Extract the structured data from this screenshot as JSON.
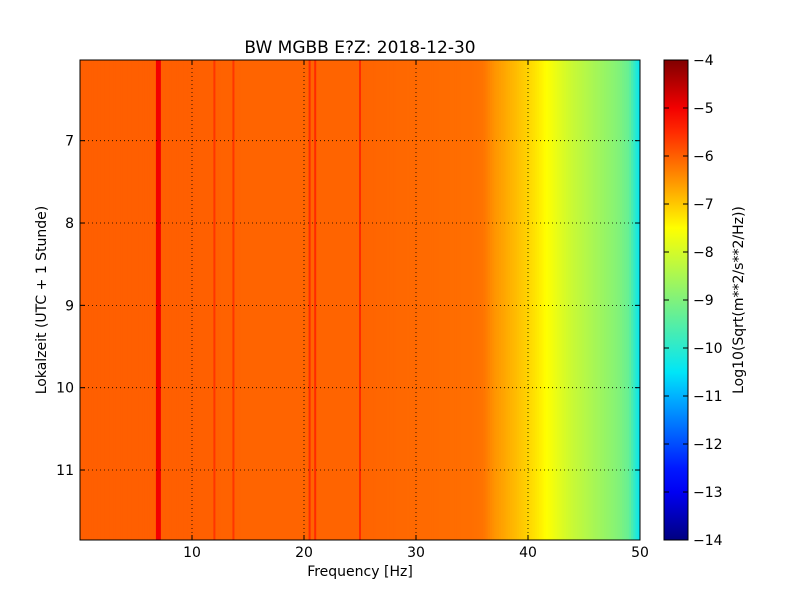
{
  "chart_data": {
    "type": "heatmap",
    "title": "BW MGBB E?Z: 2018-12-30",
    "xlabel": "Frequency [Hz]",
    "ylabel": "Lokalzeit (UTC + 1 Stunde)",
    "colorbar_label": "Log10(Sqrt(m**2/s**2/Hz))",
    "xlim": [
      0,
      50
    ],
    "ylim": [
      6.02,
      11.85
    ],
    "y_inverted": true,
    "x_ticks": [
      10,
      20,
      30,
      40,
      50
    ],
    "x_tick_labels": [
      "10",
      "20",
      "30",
      "40",
      "50"
    ],
    "y_ticks": [
      7,
      8,
      9,
      10,
      11
    ],
    "y_tick_labels": [
      "7",
      "8",
      "9",
      "10",
      "11"
    ],
    "colorbar_ticks": [
      -4,
      -5,
      -6,
      -7,
      -8,
      -9,
      -10,
      -11,
      -12,
      -13,
      -14
    ],
    "colorbar_tick_labels": [
      "−4",
      "−5",
      "−6",
      "−7",
      "−8",
      "−9",
      "−10",
      "−11",
      "−12",
      "−13",
      "−14"
    ],
    "clim": [
      -14,
      -4
    ],
    "colormap": "jet",
    "grid": true,
    "frequency_profile": {
      "frequency_hz": [
        0,
        5,
        10,
        15,
        20,
        25,
        30,
        35,
        36,
        37,
        38,
        39,
        40,
        41,
        42,
        43,
        44,
        45,
        46,
        47,
        48,
        49,
        50
      ],
      "level": [
        -6.0,
        -6.0,
        -6.0,
        -6.05,
        -6.05,
        -6.05,
        -6.1,
        -6.15,
        -6.2,
        -6.5,
        -6.7,
        -6.9,
        -7.1,
        -7.35,
        -7.6,
        -7.9,
        -8.15,
        -8.35,
        -8.55,
        -8.75,
        -8.95,
        -9.3,
        -10.5
      ]
    },
    "line_features": [
      {
        "frequency_hz": 7.0,
        "level": -5.0
      },
      {
        "frequency_hz": 12.0,
        "level": -5.6
      },
      {
        "frequency_hz": 13.7,
        "level": -5.6
      },
      {
        "frequency_hz": 20.5,
        "level": -5.5
      },
      {
        "frequency_hz": 21.0,
        "level": -5.5
      },
      {
        "frequency_hz": 25.0,
        "level": -5.5
      }
    ]
  }
}
